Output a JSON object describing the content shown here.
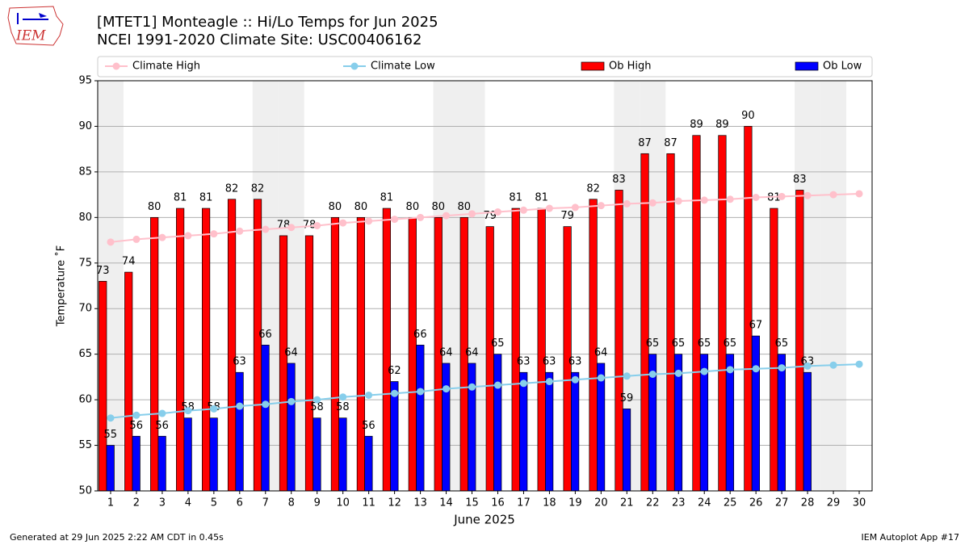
{
  "chart_data": {
    "type": "bar_line",
    "title": "[MTET1] Monteagle :: Hi/Lo Temps for Jun 2025",
    "subtitle": "NCEI 1991-2020 Climate Site: USC00406162",
    "xlabel": "June 2025",
    "ylabel": "Temperature ˚F",
    "x": [
      1,
      2,
      3,
      4,
      5,
      6,
      7,
      8,
      9,
      10,
      11,
      12,
      13,
      14,
      15,
      16,
      17,
      18,
      19,
      20,
      21,
      22,
      23,
      24,
      25,
      26,
      27,
      28,
      29,
      30
    ],
    "xlim": [
      0.5,
      30.5
    ],
    "xticks": [
      1,
      2,
      3,
      4,
      5,
      6,
      7,
      8,
      9,
      10,
      11,
      12,
      13,
      14,
      15,
      16,
      17,
      18,
      19,
      20,
      21,
      22,
      23,
      24,
      25,
      26,
      27,
      28,
      29,
      30
    ],
    "ylim": [
      50,
      95
    ],
    "yticks": [
      50,
      55,
      60,
      65,
      70,
      75,
      80,
      85,
      90,
      95
    ],
    "grid": true,
    "shaded_days": [
      1,
      7,
      8,
      14,
      15,
      21,
      22,
      28,
      29
    ],
    "shade_color": "#efefef",
    "series": [
      {
        "name": "Climate High",
        "kind": "line",
        "color": "#ffc0cb",
        "values": [
          77.3,
          77.6,
          77.8,
          78.0,
          78.2,
          78.5,
          78.7,
          78.9,
          79.1,
          79.4,
          79.6,
          79.8,
          80.0,
          80.2,
          80.4,
          80.6,
          80.8,
          81.0,
          81.1,
          81.3,
          81.5,
          81.6,
          81.8,
          81.9,
          82.0,
          82.2,
          82.3,
          82.4,
          82.5,
          82.6
        ]
      },
      {
        "name": "Climate Low",
        "kind": "line",
        "color": "#87ceeb",
        "values": [
          58.0,
          58.3,
          58.5,
          58.8,
          59.0,
          59.3,
          59.5,
          59.8,
          60.0,
          60.3,
          60.5,
          60.7,
          60.9,
          61.2,
          61.4,
          61.6,
          61.8,
          62.0,
          62.2,
          62.4,
          62.6,
          62.8,
          62.9,
          63.1,
          63.3,
          63.4,
          63.5,
          63.7,
          63.8,
          63.9
        ]
      },
      {
        "name": "Ob High",
        "kind": "bar",
        "color": "#ff0000",
        "values": [
          73,
          74,
          80,
          81,
          81,
          82,
          82,
          78,
          78,
          80,
          80,
          81,
          80,
          80,
          80,
          79,
          81,
          81,
          79,
          82,
          83,
          87,
          87,
          89,
          89,
          90,
          81,
          83,
          null,
          null
        ]
      },
      {
        "name": "Ob Low",
        "kind": "bar",
        "color": "#0000ff",
        "values": [
          55,
          56,
          56,
          58,
          58,
          63,
          66,
          64,
          58,
          58,
          56,
          62,
          66,
          64,
          64,
          65,
          63,
          63,
          63,
          64,
          59,
          65,
          65,
          65,
          65,
          67,
          65,
          63,
          null,
          null
        ]
      }
    ],
    "logo_text": "IEM",
    "footer_left": "Generated at 29 Jun 2025 2:22 AM CDT in 0.45s",
    "footer_right": "IEM Autoplot App #17"
  }
}
